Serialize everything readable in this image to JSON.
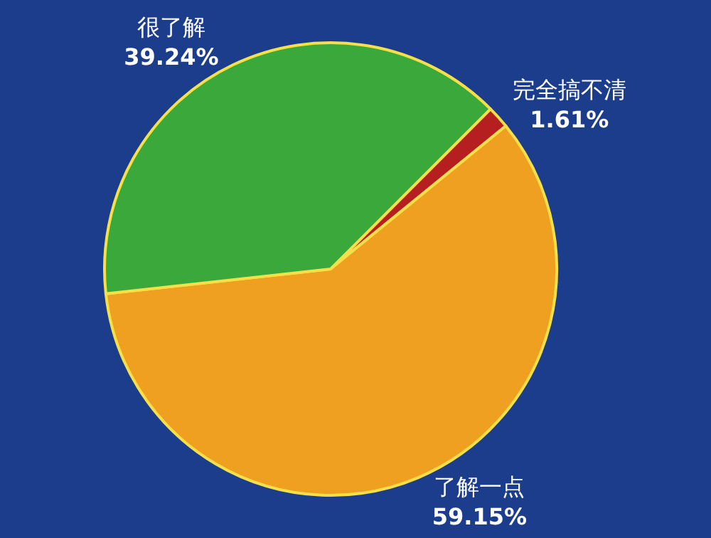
{
  "chart_data": {
    "type": "pie",
    "categories": [
      "完全搞不清",
      "了解一点",
      "很了解"
    ],
    "values": [
      1.61,
      59.15,
      39.24
    ],
    "value_labels": [
      "1.61%",
      "59.15%",
      "39.24%"
    ],
    "colors": [
      "#b51f1f",
      "#f0a020",
      "#3aa83a"
    ],
    "legend": false
  }
}
